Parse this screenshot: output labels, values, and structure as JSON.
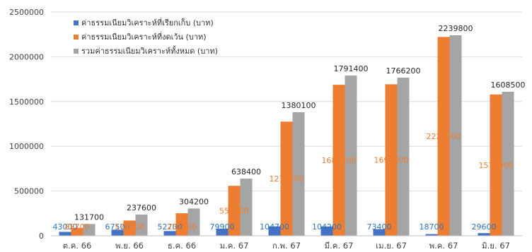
{
  "chart_data": {
    "type": "bar",
    "categories": [
      "ต.ค. 66",
      "พ.ย. 66",
      "ธ.ค. 66",
      "ม.ค. 67",
      "ก.พ. 67",
      "มี.ค. 67",
      "เม.ย. 67",
      "พ.ค. 67",
      "มิ.ย. 67"
    ],
    "series": [
      {
        "name": "ค่าธรรมเนียมวิเคราะห์ที่เรียกเก็บ (บาท)",
        "color": "#4472c4",
        "label_color": "#2e75b6",
        "values": [
          43000,
          67500,
          52700,
          79900,
          104700,
          104200,
          73400,
          18700,
          29600
        ]
      },
      {
        "name": "ค่าธรรมเนียมวิเคราะห์ที่งดเว้น (บาท)",
        "color": "#ed7d31",
        "label_color": "#ed7d31",
        "values": [
          88700,
          170100,
          251500,
          558500,
          1275400,
          1687200,
          1692800,
          2221100,
          1578900
        ],
        "label_texts": [
          "88700",
          "170100",
          "251500",
          "558500",
          "1275400",
          "1687200",
          "1692800",
          "2221100",
          "1578900"
        ]
      },
      {
        "name": "รวมค่าธรรมเนียมวิเคราะห์ทั้งหมด (บาท)",
        "color": "#a5a5a5",
        "label_color": "#262626",
        "values": [
          131700,
          237600,
          304200,
          638400,
          1380100,
          1791400,
          1766200,
          2239800,
          1608500
        ]
      }
    ],
    "y_ticks": [
      "0",
      "500000",
      "1000000",
      "1500000",
      "2000000",
      "2500000"
    ],
    "ylim": [
      0,
      2500000
    ],
    "grid": true,
    "legend_position": "top-left"
  }
}
